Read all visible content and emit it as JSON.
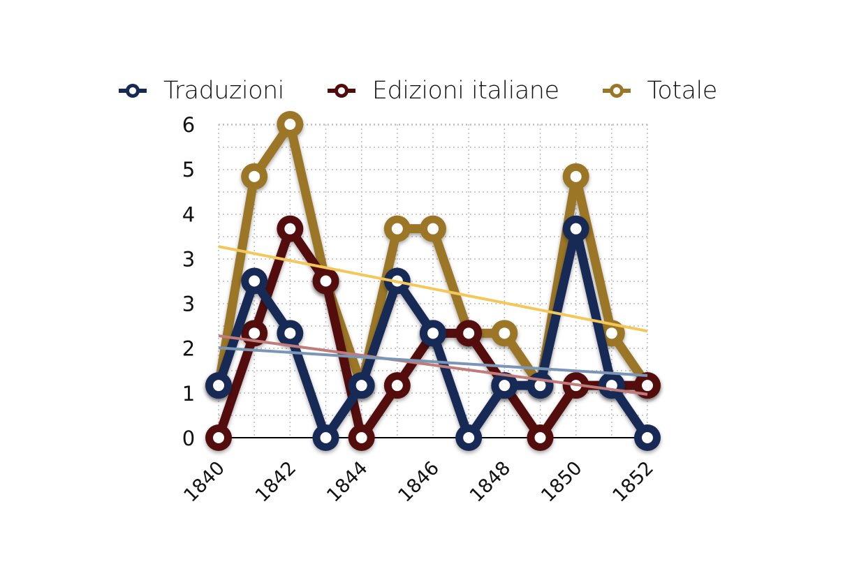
{
  "legend": {
    "items": [
      {
        "label": "Traduzioni",
        "color": "#172a55"
      },
      {
        "label": "Edizioni italiane",
        "color": "#520b0b"
      },
      {
        "label": "Totale",
        "color": "#9a7627"
      }
    ]
  },
  "chart_data": {
    "type": "line",
    "title": "",
    "xlabel": "",
    "ylabel": "",
    "x": [
      1840,
      1841,
      1842,
      1843,
      1844,
      1845,
      1846,
      1847,
      1848,
      1849,
      1850,
      1851,
      1852
    ],
    "x_tick_labels": [
      "1840",
      "1842",
      "1844",
      "1846",
      "1848",
      "1850",
      "1852"
    ],
    "y_tick_labels": [
      "0",
      "1",
      "2",
      "3",
      "3",
      "4",
      "5",
      "6"
    ],
    "ylim": [
      0,
      6
    ],
    "grid": true,
    "legend_position": "top",
    "series": [
      {
        "name": "Traduzioni",
        "color": "#172a55",
        "values": [
          1,
          3,
          2,
          0,
          1,
          3,
          2,
          0,
          1,
          1,
          4,
          1,
          0
        ]
      },
      {
        "name": "Edizioni italiane",
        "color": "#520b0b",
        "values": [
          0,
          2,
          4,
          3,
          0,
          1,
          2,
          2,
          1,
          0,
          1,
          1,
          1
        ]
      },
      {
        "name": "Totale",
        "color": "#9a7627",
        "values": [
          1,
          5,
          6,
          3,
          1,
          4,
          4,
          2,
          2,
          1,
          5,
          2,
          1
        ]
      }
    ],
    "trendlines": [
      {
        "series": "Totale",
        "color": "#f3c85a",
        "start": 3.66,
        "end": 2.04
      },
      {
        "series": "Edizioni italiane",
        "color": "#c07b7b",
        "start": 1.95,
        "end": 0.83
      },
      {
        "series": "Traduzioni",
        "color": "#7a95b5",
        "start": 1.72,
        "end": 1.19
      }
    ]
  }
}
